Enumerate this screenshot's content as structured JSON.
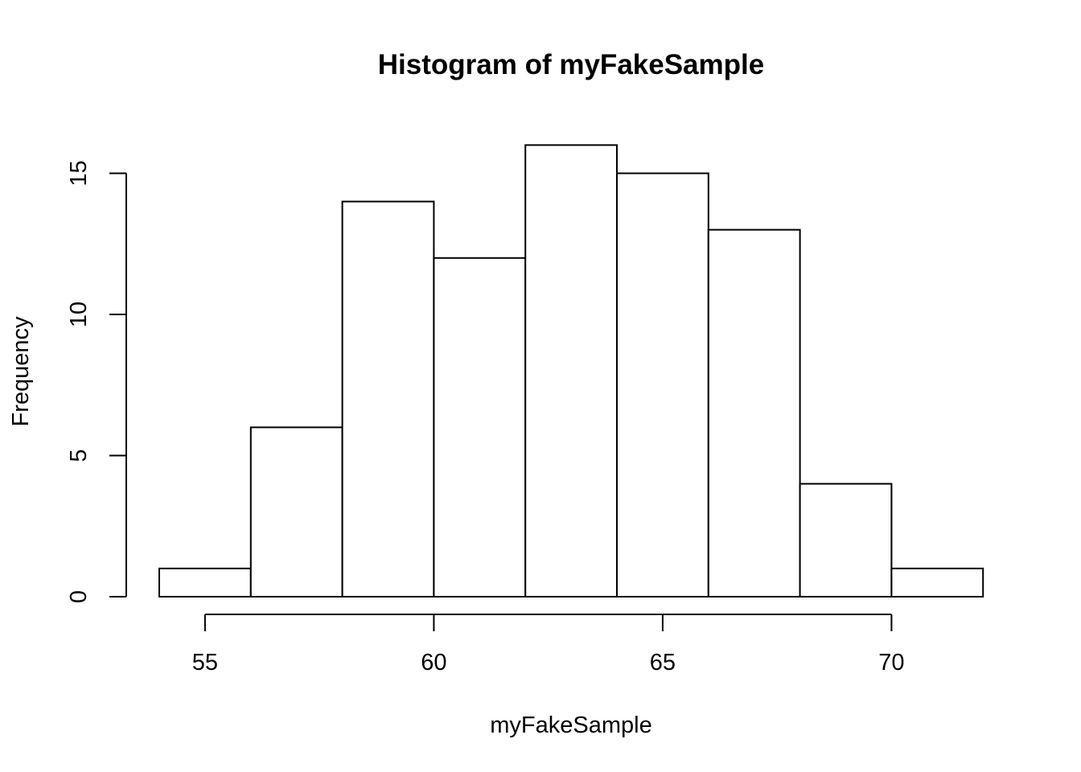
{
  "chart_data": {
    "type": "bar",
    "title": "Histogram of myFakeSample",
    "xlabel": "myFakeSample",
    "ylabel": "Frequency",
    "bins": [
      {
        "start": 54,
        "end": 56,
        "count": 1
      },
      {
        "start": 56,
        "end": 58,
        "count": 6
      },
      {
        "start": 58,
        "end": 60,
        "count": 14
      },
      {
        "start": 60,
        "end": 62,
        "count": 12
      },
      {
        "start": 62,
        "end": 64,
        "count": 16
      },
      {
        "start": 64,
        "end": 66,
        "count": 15
      },
      {
        "start": 66,
        "end": 68,
        "count": 13
      },
      {
        "start": 68,
        "end": 70,
        "count": 4
      },
      {
        "start": 70,
        "end": 72,
        "count": 1
      }
    ],
    "x_ticks": [
      55,
      60,
      65,
      70
    ],
    "y_ticks": [
      0,
      5,
      10,
      15
    ],
    "xlim": [
      54,
      72
    ],
    "ylim": [
      0,
      16
    ],
    "grid": false,
    "legend": "none",
    "bar_fill": "#ffffff",
    "bar_stroke": "#000000"
  }
}
